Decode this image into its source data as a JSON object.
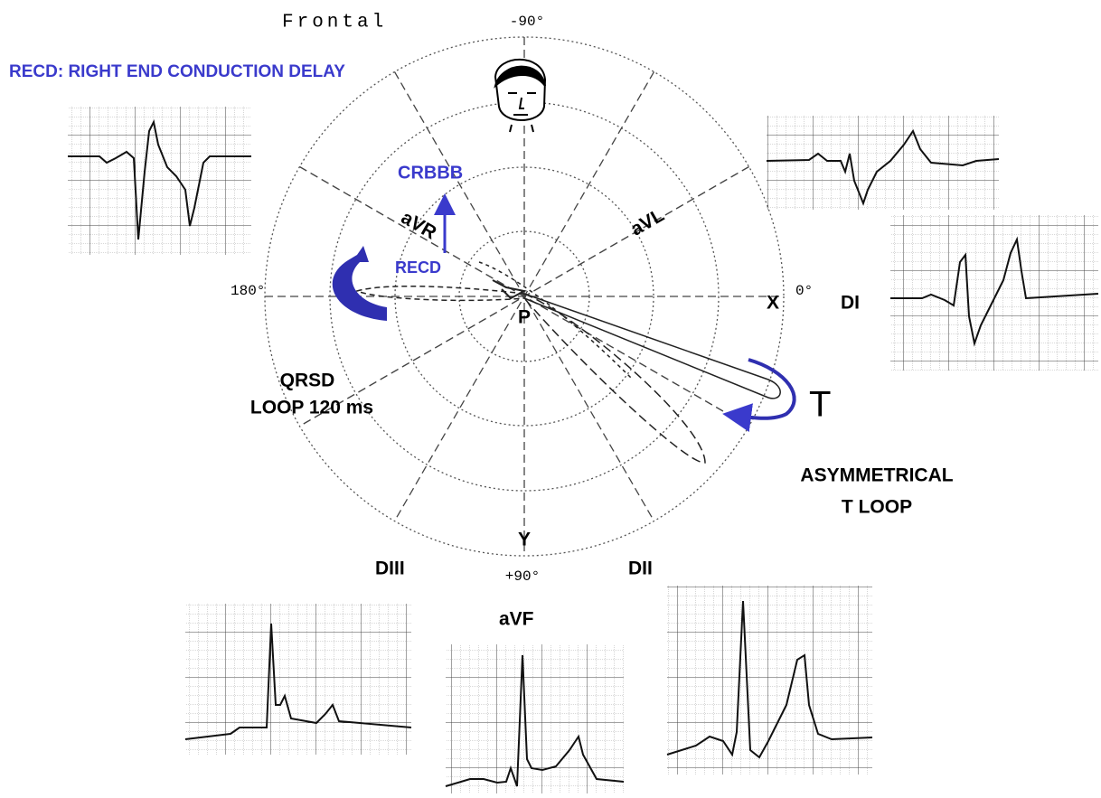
{
  "title": "Frontal",
  "header": "RECD: RIGHT END CONDUCTION DELAY",
  "angles": {
    "top": "-90°",
    "left": "180°",
    "right": "0°",
    "bottom": "+90°"
  },
  "axes": {
    "x": "X",
    "y": "Y"
  },
  "leads": {
    "avr": "aVR",
    "avl": "aVL",
    "di": "DI",
    "dii": "DII",
    "diii": "DIII",
    "avf": "aVF"
  },
  "annotations": {
    "crbbb": "CRBBB",
    "recd": "RECD",
    "p": "P",
    "qrsd": [
      "QRSD",
      "LOOP 120 ms"
    ],
    "t": "T",
    "tloop": [
      "ASYMMETRICAL",
      "T LOOP"
    ]
  }
}
